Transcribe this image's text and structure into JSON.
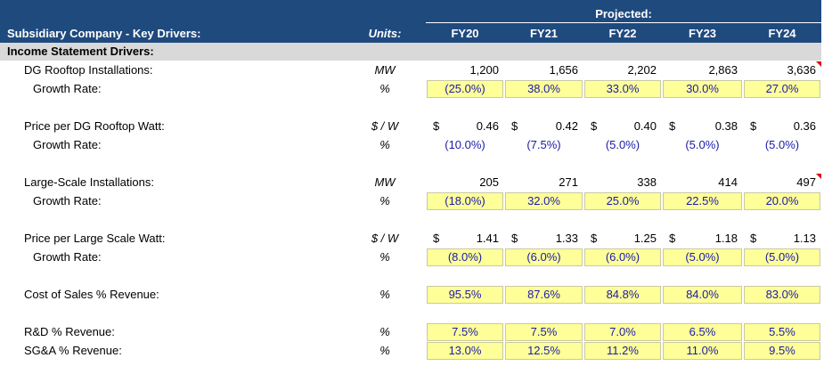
{
  "header": {
    "projected": "Projected:",
    "title": "Subsidiary Company - Key Drivers:",
    "units": "Units:",
    "columns": [
      "FY20",
      "FY21",
      "FY22",
      "FY23",
      "FY24"
    ]
  },
  "section": "Income Statement Drivers:",
  "rows": [
    {
      "label": "DG Rooftop Installations:",
      "units": "MW",
      "values": [
        "1,200",
        "1,656",
        "2,202",
        "2,863",
        "3,636"
      ]
    },
    {
      "label": "Growth Rate:",
      "units": "%",
      "level": 2,
      "input": true,
      "values": [
        "(25.0%)",
        "38.0%",
        "33.0%",
        "30.0%",
        "27.0%"
      ]
    },
    {
      "label": "Price per DG Rooftop Watt:",
      "units": "$ / W",
      "currency": "$",
      "values": [
        "0.46",
        "0.42",
        "0.40",
        "0.38",
        "0.36"
      ]
    },
    {
      "label": "Growth Rate:",
      "units": "%",
      "level": 2,
      "values": [
        "(10.0%)",
        "(7.5%)",
        "(5.0%)",
        "(5.0%)",
        "(5.0%)"
      ]
    },
    {
      "label": "Large-Scale Installations:",
      "units": "MW",
      "values": [
        "205",
        "271",
        "338",
        "414",
        "497"
      ]
    },
    {
      "label": "Growth Rate:",
      "units": "%",
      "level": 2,
      "input": true,
      "values": [
        "(18.0%)",
        "32.0%",
        "25.0%",
        "22.5%",
        "20.0%"
      ]
    },
    {
      "label": "Price per Large Scale Watt:",
      "units": "$ / W",
      "currency": "$",
      "values": [
        "1.41",
        "1.33",
        "1.25",
        "1.18",
        "1.13"
      ]
    },
    {
      "label": "Growth Rate:",
      "units": "%",
      "level": 2,
      "input": true,
      "values": [
        "(8.0%)",
        "(6.0%)",
        "(6.0%)",
        "(5.0%)",
        "(5.0%)"
      ]
    },
    {
      "label": "Cost of Sales % Revenue:",
      "units": "%",
      "input": true,
      "values": [
        "95.5%",
        "87.6%",
        "84.8%",
        "84.0%",
        "83.0%"
      ]
    },
    {
      "label": "R&D % Revenue:",
      "units": "%",
      "input": true,
      "values": [
        "7.5%",
        "7.5%",
        "7.0%",
        "6.5%",
        "5.5%"
      ]
    },
    {
      "label": "SG&A % Revenue:",
      "units": "%",
      "input": true,
      "values": [
        "13.0%",
        "12.5%",
        "11.2%",
        "11.0%",
        "9.5%"
      ]
    }
  ]
}
